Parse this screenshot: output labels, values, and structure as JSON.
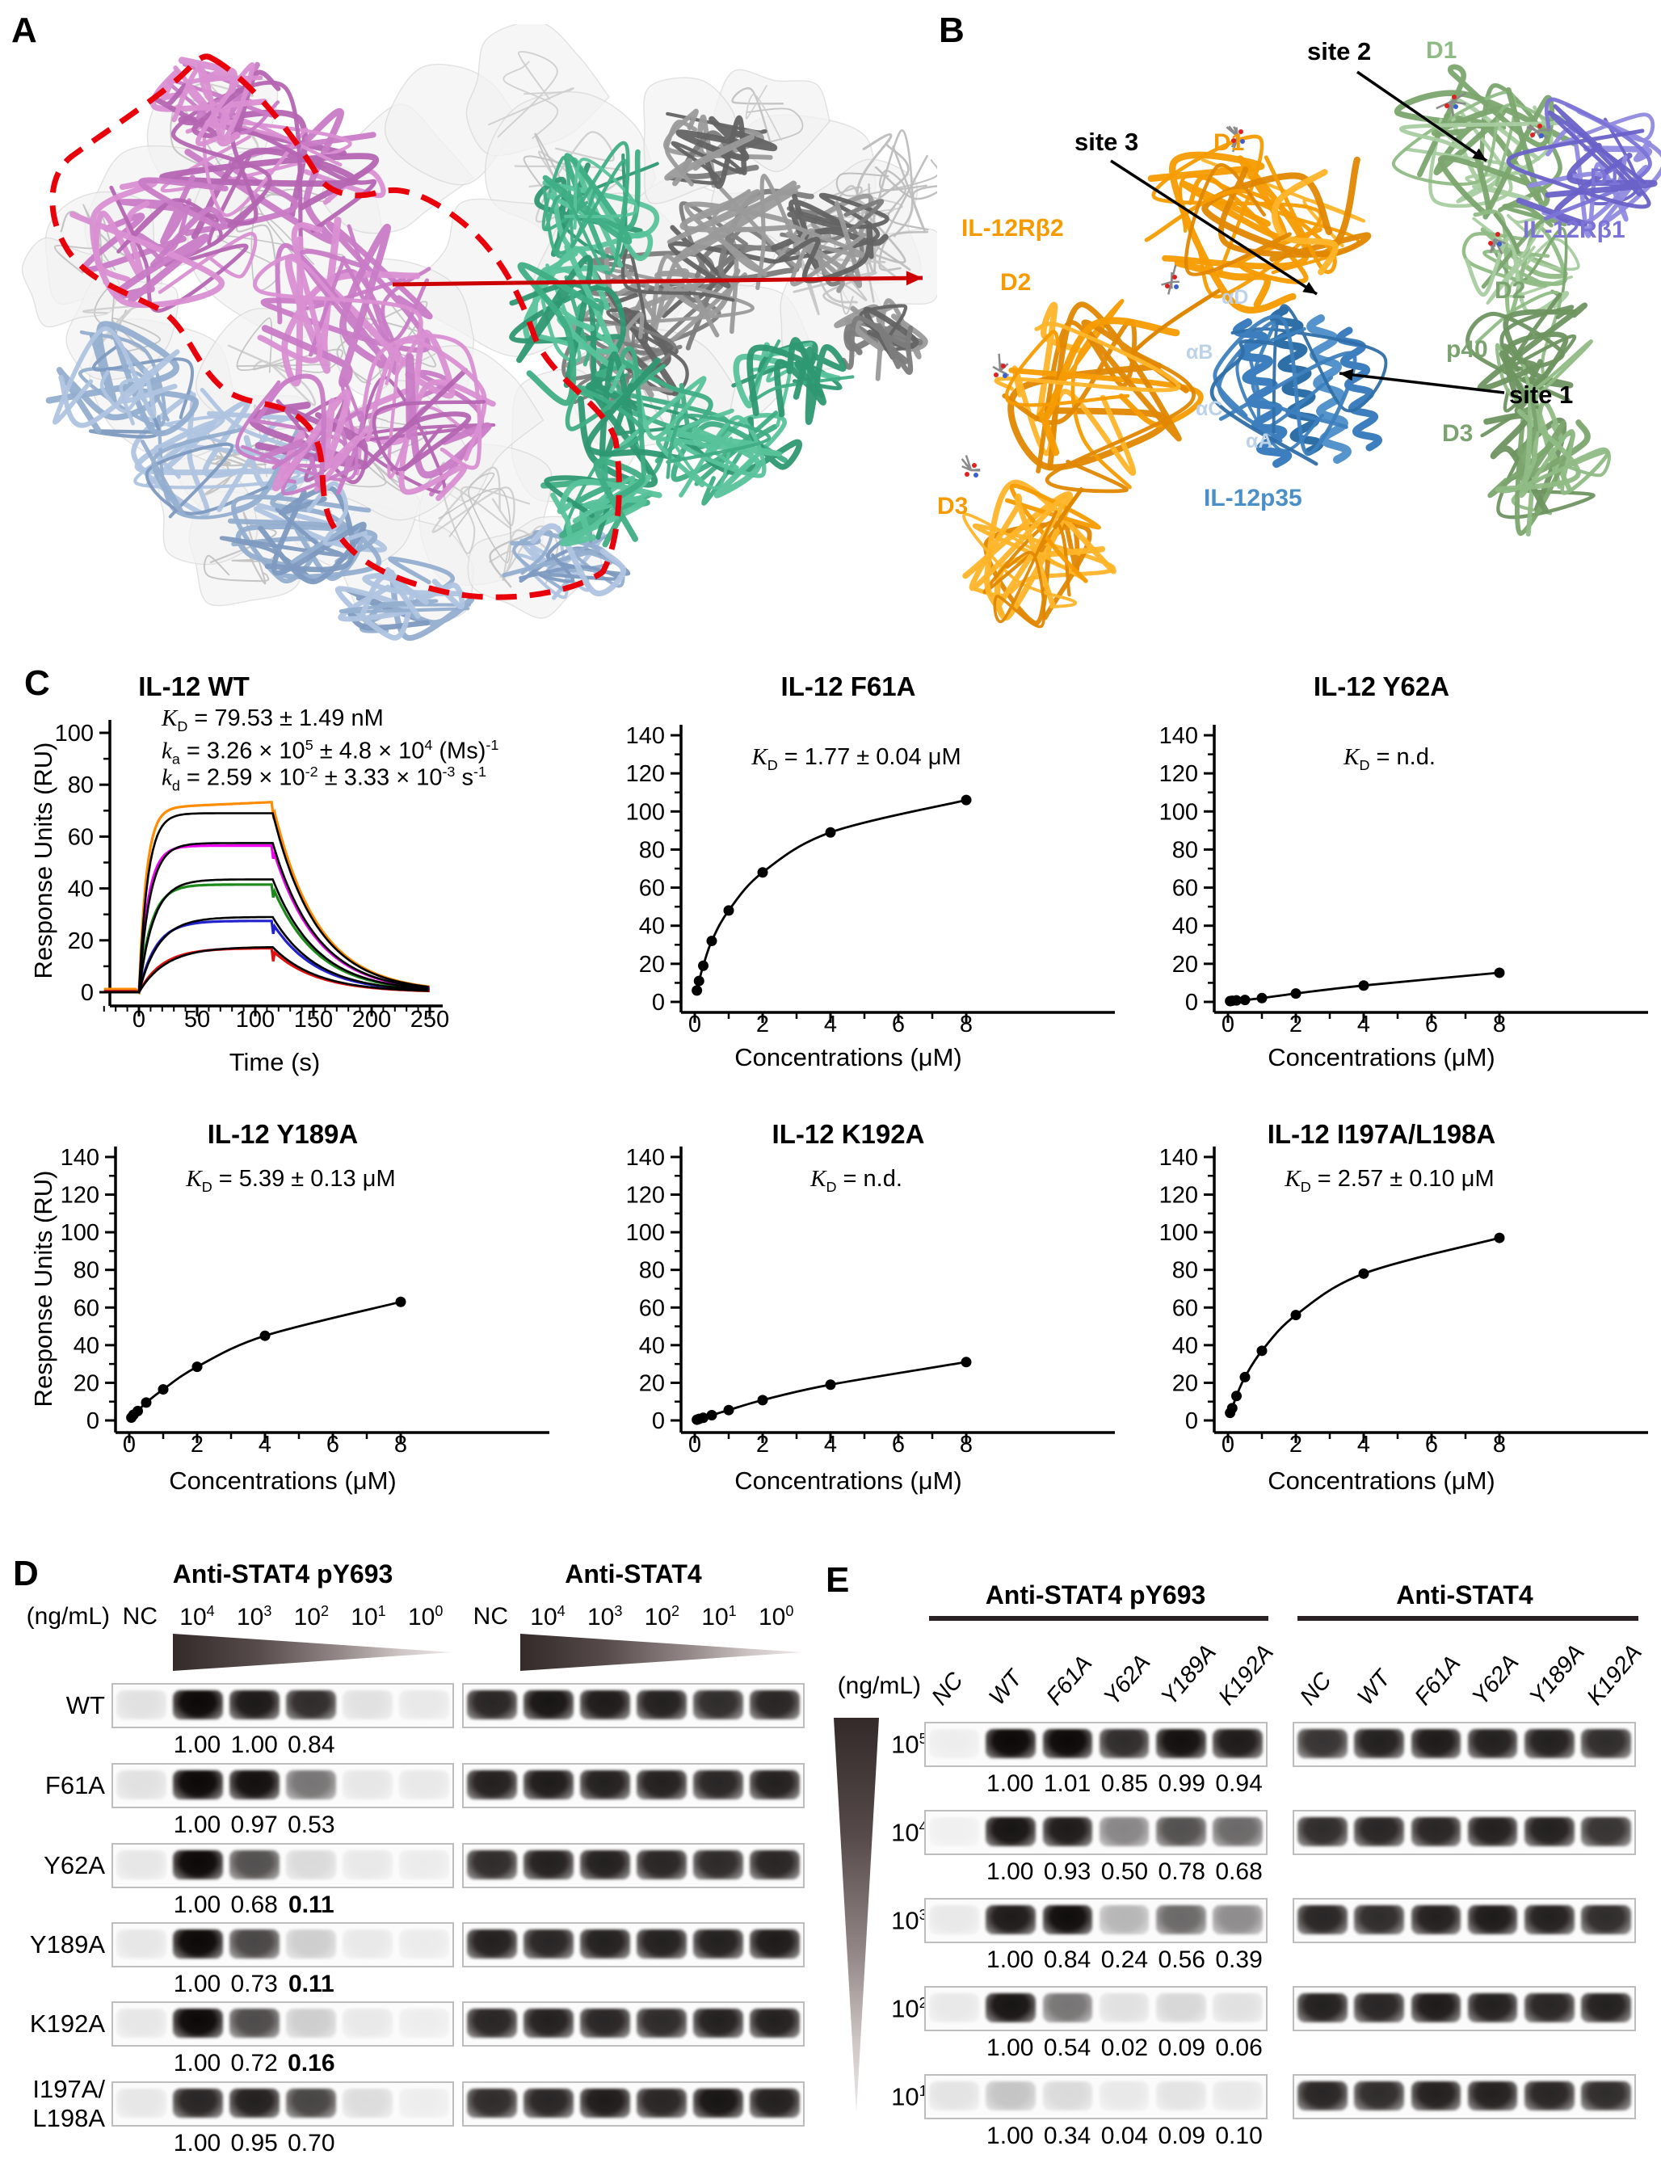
{
  "panels": {
    "A": "A",
    "B": "B",
    "C": "C",
    "D": "D",
    "E": "E"
  },
  "panelB": {
    "labels": {
      "site2": {
        "text": "site 2",
        "color": "#000000"
      },
      "site3": {
        "text": "site 3",
        "color": "#000000"
      },
      "site1": {
        "text": "site 1",
        "color": "#000000"
      },
      "il12rb2": {
        "text": "IL-12Rβ2",
        "color": "#F59B00"
      },
      "d1rb2": {
        "text": "D1",
        "color": "#F59B00"
      },
      "d2rb2": {
        "text": "D2",
        "color": "#F59B00"
      },
      "d3rb2": {
        "text": "D3",
        "color": "#F59B00"
      },
      "il12p35": {
        "text": "IL-12p35",
        "color": "#4A8FC7"
      },
      "alphaA": {
        "text": "αA",
        "color": "#BCD2E8"
      },
      "alphaB": {
        "text": "αB",
        "color": "#BCD2E8"
      },
      "alphaC": {
        "text": "αC",
        "color": "#BCD2E8"
      },
      "alphaD": {
        "text": "αD",
        "color": "#BCD2E8"
      },
      "p40": {
        "text": "p40",
        "color": "#7BA36F"
      },
      "d1p40": {
        "text": "D1",
        "color": "#8FBC85"
      },
      "d2p40": {
        "text": "D2",
        "color": "#7BA36F"
      },
      "d3p40": {
        "text": "D3",
        "color": "#7BA36F"
      },
      "d1rb1": {
        "text": "D1",
        "color": "#7B74D6"
      },
      "il12rb1": {
        "text": "IL-12Rβ1",
        "color": "#7B74D6"
      }
    }
  },
  "chart_data": [
    {
      "id": "wt",
      "type": "line",
      "title": "IL-12 WT",
      "xlabel": "Time (s)",
      "ylabel": "Response Units (RU)",
      "show_ylabel": true,
      "xlim": [
        -30,
        255
      ],
      "ylim": [
        -5,
        100
      ],
      "xticks": [
        0,
        50,
        100,
        150,
        200,
        250
      ],
      "yticks": [
        0,
        20,
        40,
        60,
        80,
        100
      ],
      "annotations": [
        {
          "sym": "K",
          "sub": "D",
          "segs": [
            {
              "t": " = 79.53 ± 1.49 nM"
            }
          ]
        },
        {
          "sym": "k",
          "sub": "a",
          "segs": [
            {
              "t": " = 3.26 × 10"
            },
            {
              "sup": "5"
            },
            {
              "t": " ± 4.8 × 10"
            },
            {
              "sup": "4"
            },
            {
              "t": " (Ms)"
            },
            {
              "sup": "-1"
            }
          ]
        },
        {
          "sym": "k",
          "sub": "d",
          "segs": [
            {
              "t": " = 2.59 × 10"
            },
            {
              "sup": "-2"
            },
            {
              "t": " ± 3.33 × 10"
            },
            {
              "sup": "-3"
            },
            {
              "t": " s"
            },
            {
              "sup": "-1"
            }
          ]
        }
      ],
      "injection": {
        "start": 0,
        "stop": 115,
        "end": 250
      },
      "series": [
        {
          "name": "trace-1",
          "color": "#FF8C00",
          "plateau": 71,
          "kobs": 0.155,
          "koff": 0.0262
        },
        {
          "name": "trace-2",
          "color": "#EE00EE",
          "plateau": 56.5,
          "kobs": 0.125,
          "koff": 0.0262
        },
        {
          "name": "trace-3",
          "color": "#1B8A1B",
          "plateau": 41.5,
          "kobs": 0.095,
          "koff": 0.0262
        },
        {
          "name": "trace-4",
          "color": "#2222CC",
          "plateau": 27.5,
          "kobs": 0.07,
          "koff": 0.0262
        },
        {
          "name": "trace-5",
          "color": "#E01010",
          "plateau": 17,
          "kobs": 0.05,
          "koff": 0.0262
        }
      ],
      "fit": {
        "color": "#000000",
        "plateaus": [
          69,
          57.5,
          43.5,
          29,
          17.5
        ]
      }
    },
    {
      "id": "f61a",
      "type": "scatter",
      "title": "IL-12 F61A",
      "xlabel": "Concentrations (μM)",
      "show_ylabel": false,
      "xlim": [
        0,
        9
      ],
      "ylim": [
        0,
        140
      ],
      "xticks": [
        0,
        2,
        4,
        6,
        8
      ],
      "yticks": [
        0,
        20,
        40,
        60,
        80,
        100,
        120,
        140
      ],
      "annotations": [
        {
          "sym": "K",
          "sub": "D",
          "segs": [
            {
              "t": " = 1.77 ± 0.04 μM"
            }
          ]
        }
      ],
      "x": [
        0.0625,
        0.125,
        0.25,
        0.5,
        1,
        2,
        4,
        8
      ],
      "y": [
        6,
        11,
        19,
        32,
        48,
        68,
        89,
        106
      ]
    },
    {
      "id": "y62a",
      "type": "scatter",
      "title": "IL-12 Y62A",
      "xlabel": "Concentrations (μM)",
      "show_ylabel": false,
      "xlim": [
        0,
        9
      ],
      "ylim": [
        0,
        140
      ],
      "xticks": [
        0,
        2,
        4,
        6,
        8
      ],
      "yticks": [
        0,
        20,
        40,
        60,
        80,
        100,
        120,
        140
      ],
      "annotations": [
        {
          "sym": "K",
          "sub": "D",
          "segs": [
            {
              "t": " = n.d."
            }
          ]
        }
      ],
      "x": [
        0.0625,
        0.125,
        0.25,
        0.5,
        1,
        2,
        4,
        8
      ],
      "y": [
        0.4,
        0.6,
        0.8,
        1.0,
        2.0,
        4.4,
        8.6,
        15.3
      ]
    },
    {
      "id": "y189a",
      "type": "scatter",
      "title": "IL-12 Y189A",
      "xlabel": "Concentrations (μM)",
      "ylabel": "Response Units (RU)",
      "show_ylabel": true,
      "xlim": [
        0,
        9
      ],
      "ylim": [
        0,
        140
      ],
      "xticks": [
        0,
        2,
        4,
        6,
        8
      ],
      "yticks": [
        0,
        20,
        40,
        60,
        80,
        100,
        120,
        140
      ],
      "annotations": [
        {
          "sym": "K",
          "sub": "D",
          "segs": [
            {
              "t": " = 5.39 ± 0.13 μM"
            }
          ]
        }
      ],
      "x": [
        0.0625,
        0.125,
        0.25,
        0.5,
        1,
        2,
        4,
        8
      ],
      "y": [
        1.5,
        3,
        5,
        9.5,
        16.5,
        28.5,
        45,
        63
      ]
    },
    {
      "id": "k192a",
      "type": "scatter",
      "title": "IL-12 K192A",
      "xlabel": "Concentrations (μM)",
      "show_ylabel": false,
      "xlim": [
        0,
        9
      ],
      "ylim": [
        0,
        140
      ],
      "xticks": [
        0,
        2,
        4,
        6,
        8
      ],
      "yticks": [
        0,
        20,
        40,
        60,
        80,
        100,
        120,
        140
      ],
      "annotations": [
        {
          "sym": "K",
          "sub": "D",
          "segs": [
            {
              "t": " = n.d."
            }
          ]
        }
      ],
      "x": [
        0.0625,
        0.125,
        0.25,
        0.5,
        1,
        2,
        4,
        8
      ],
      "y": [
        0.4,
        0.8,
        1.4,
        2.8,
        5.5,
        10.8,
        19,
        31
      ]
    },
    {
      "id": "i197a",
      "type": "scatter",
      "title": "IL-12 I197A/L198A",
      "xlabel": "Concentrations (μM)",
      "show_ylabel": false,
      "xlim": [
        0,
        9
      ],
      "ylim": [
        0,
        140
      ],
      "xticks": [
        0,
        2,
        4,
        6,
        8
      ],
      "yticks": [
        0,
        20,
        40,
        60,
        80,
        100,
        120,
        140
      ],
      "annotations": [
        {
          "sym": "K",
          "sub": "D",
          "segs": [
            {
              "t": " = 2.57 ± 0.10 μM"
            }
          ]
        }
      ],
      "x": [
        0.0625,
        0.125,
        0.25,
        0.5,
        1,
        2,
        4,
        8
      ],
      "y": [
        4,
        6.5,
        13,
        23,
        37,
        56,
        78,
        97
      ]
    }
  ],
  "panelD": {
    "headers": [
      "Anti-STAT4 pY693",
      "Anti-STAT4"
    ],
    "conc_unit": "(ng/mL)",
    "lane_labels": [
      {
        "t": "NC"
      },
      {
        "b": "10",
        "s": "4"
      },
      {
        "b": "10",
        "s": "3"
      },
      {
        "b": "10",
        "s": "2"
      },
      {
        "b": "10",
        "s": "1"
      },
      {
        "b": "10",
        "s": "0"
      }
    ],
    "rows": [
      {
        "label": [
          "WT"
        ],
        "quant": [
          "1.00",
          "1.00",
          "0.84"
        ],
        "bold": [
          false,
          false,
          false
        ],
        "py": [
          0.1,
          1.0,
          0.93,
          0.85,
          0.1,
          0.07
        ],
        "total": [
          0.88,
          0.95,
          0.92,
          0.9,
          0.85,
          0.88
        ]
      },
      {
        "label": [
          "F61A"
        ],
        "quant": [
          "1.00",
          "0.97",
          "0.53"
        ],
        "bold": [
          false,
          false,
          false
        ],
        "py": [
          0.1,
          1.0,
          0.97,
          0.55,
          0.08,
          0.07
        ],
        "total": [
          0.9,
          0.92,
          0.9,
          0.9,
          0.88,
          0.9
        ]
      },
      {
        "label": [
          "Y62A"
        ],
        "quant": [
          "1.00",
          "0.68",
          "0.11"
        ],
        "bold": [
          false,
          false,
          true
        ],
        "py": [
          0.08,
          1.0,
          0.7,
          0.13,
          0.07,
          0.06
        ],
        "total": [
          0.85,
          0.9,
          0.9,
          0.88,
          0.86,
          0.88
        ]
      },
      {
        "label": [
          "Y189A"
        ],
        "quant": [
          "1.00",
          "0.73",
          "0.11"
        ],
        "bold": [
          false,
          false,
          true
        ],
        "py": [
          0.08,
          1.0,
          0.74,
          0.18,
          0.07,
          0.06
        ],
        "total": [
          0.9,
          0.88,
          0.9,
          0.9,
          0.9,
          0.92
        ]
      },
      {
        "label": [
          "K192A"
        ],
        "quant": [
          "1.00",
          "0.72",
          "0.16"
        ],
        "bold": [
          false,
          false,
          true
        ],
        "py": [
          0.08,
          1.0,
          0.72,
          0.18,
          0.07,
          0.05
        ],
        "total": [
          0.88,
          0.9,
          0.88,
          0.86,
          0.9,
          0.9
        ]
      },
      {
        "label": [
          "I197A/",
          "L198A"
        ],
        "quant": [
          "1.00",
          "0.95",
          "0.70"
        ],
        "bold": [
          false,
          false,
          false
        ],
        "py": [
          0.08,
          0.88,
          0.9,
          0.75,
          0.12,
          0.05
        ],
        "total": [
          0.85,
          0.88,
          0.92,
          0.88,
          0.95,
          0.9
        ]
      }
    ]
  },
  "panelE": {
    "headers": [
      "Anti-STAT4 pY693",
      "Anti-STAT4"
    ],
    "conc_unit": "(ng/mL)",
    "lane_labels": [
      "NC",
      "WT",
      "F61A",
      "Y62A",
      "Y189A",
      "K192A"
    ],
    "rows": [
      {
        "conc": {
          "b": "10",
          "s": "5"
        },
        "quant": [
          "1.00",
          "1.01",
          "0.85",
          "0.99",
          "0.94"
        ],
        "py": [
          0.05,
          1.0,
          1.0,
          0.85,
          0.97,
          0.92
        ],
        "total": [
          0.82,
          0.9,
          0.92,
          0.9,
          0.9,
          0.85
        ]
      },
      {
        "conc": {
          "b": "10",
          "s": "4"
        },
        "quant": [
          "1.00",
          "0.93",
          "0.50",
          "0.78",
          "0.68"
        ],
        "py": [
          0.04,
          0.95,
          0.92,
          0.48,
          0.7,
          0.6
        ],
        "total": [
          0.85,
          0.88,
          0.88,
          0.9,
          0.9,
          0.82
        ]
      },
      {
        "conc": {
          "b": "10",
          "s": "3"
        },
        "quant": [
          "1.00",
          "0.84",
          "0.24",
          "0.56",
          "0.39"
        ],
        "py": [
          0.07,
          0.92,
          0.98,
          0.28,
          0.6,
          0.45
        ],
        "total": [
          0.88,
          0.85,
          0.9,
          0.92,
          0.9,
          0.85
        ]
      },
      {
        "conc": {
          "b": "10",
          "s": "2"
        },
        "quant": [
          "1.00",
          "0.54",
          "0.02",
          "0.09",
          "0.06"
        ],
        "py": [
          0.07,
          0.95,
          0.55,
          0.1,
          0.14,
          0.1
        ],
        "total": [
          0.9,
          0.88,
          0.92,
          0.9,
          0.88,
          0.9
        ]
      },
      {
        "conc": {
          "b": "10",
          "s": "1"
        },
        "quant": [
          "1.00",
          "0.34",
          "0.04",
          "0.09",
          "0.10"
        ],
        "py": [
          0.09,
          0.22,
          0.13,
          0.07,
          0.09,
          0.07
        ],
        "total": [
          0.88,
          0.85,
          0.9,
          0.9,
          0.88,
          0.85
        ]
      }
    ]
  }
}
